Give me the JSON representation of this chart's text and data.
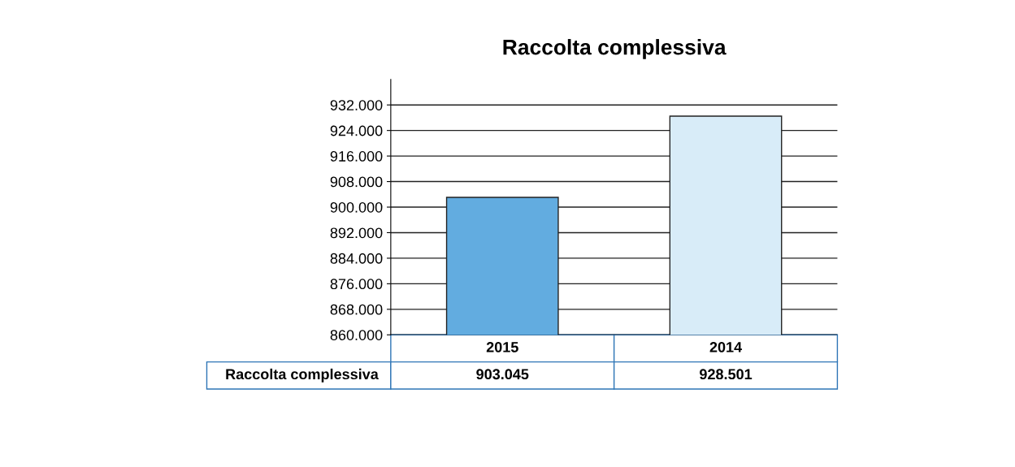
{
  "chart_data": {
    "type": "bar",
    "title": "Raccolta complessiva",
    "categories": [
      "2015",
      "2014"
    ],
    "series": [
      {
        "name": "Raccolta complessiva",
        "values": [
          903045,
          928501
        ],
        "value_labels": [
          "903.045",
          "928.501"
        ]
      }
    ],
    "colors": [
      "#62ace0",
      "#d8ecf8"
    ],
    "ylim": [
      860000,
      940000
    ],
    "yticks": [
      {
        "value": 860000,
        "label": "860.000"
      },
      {
        "value": 868000,
        "label": "868.000"
      },
      {
        "value": 876000,
        "label": "876.000"
      },
      {
        "value": 884000,
        "label": "884.000"
      },
      {
        "value": 892000,
        "label": "892.000"
      },
      {
        "value": 900000,
        "label": "900.000"
      },
      {
        "value": 908000,
        "label": "908.000"
      },
      {
        "value": 916000,
        "label": "916.000"
      },
      {
        "value": 924000,
        "label": "924.000"
      },
      {
        "value": 932000,
        "label": "932.000"
      }
    ],
    "grid": "y"
  }
}
